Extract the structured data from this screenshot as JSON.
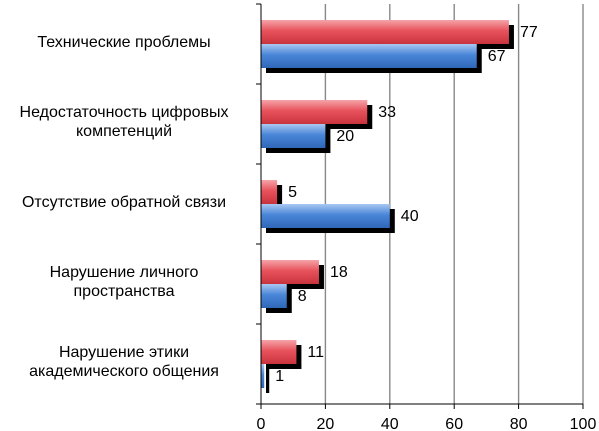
{
  "chart_data": {
    "type": "bar",
    "orientation": "horizontal",
    "categories": [
      "Технические проблемы",
      "Недостаточность цифровых компетенций",
      "Отсутствие обратной связи",
      "Нарушение личного пространства",
      "Нарушение этики академического общения"
    ],
    "category_lines": [
      [
        "Технические проблемы"
      ],
      [
        "Недостаточность цифровых",
        "компетенций"
      ],
      [
        "Отсутствие обратной связи"
      ],
      [
        "Нарушение личного",
        "пространства"
      ],
      [
        "Нарушение этики",
        "академического общения"
      ]
    ],
    "series": [
      {
        "color": "#e8525c",
        "values": [
          77,
          33,
          5,
          18,
          11
        ]
      },
      {
        "color": "#4a86d8",
        "values": [
          67,
          20,
          40,
          8,
          1
        ]
      }
    ],
    "xlim": [
      0,
      100
    ],
    "xticks": [
      "0",
      "20",
      "40",
      "60",
      "80",
      "100"
    ],
    "grid": "vertical",
    "legend": "none",
    "title": "",
    "xlabel": "",
    "ylabel": ""
  }
}
